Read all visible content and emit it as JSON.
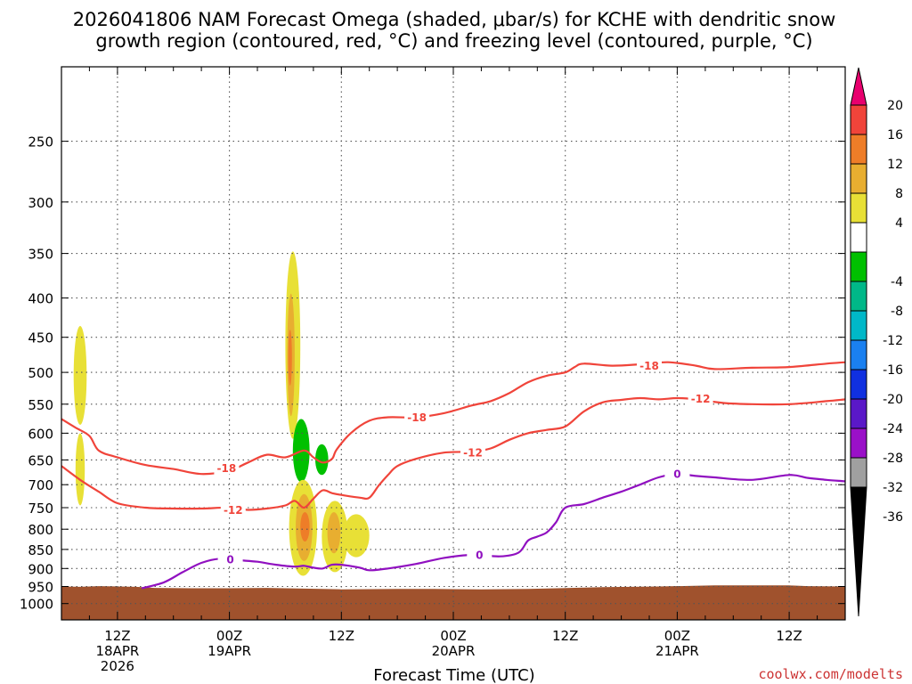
{
  "title_line1": "2026041806 NAM Forecast Omega (shaded, μbar/s) for KCHE with dendritic snow",
  "title_line2": "growth region (contoured, red, °C) and freezing level (contoured, purple, °C)",
  "credit": "coolwx.com/modelts",
  "chart_data": {
    "type": "time-height cross section",
    "xlabel": "Forecast Time (UTC)",
    "x_ticks": [
      {
        "h": 6,
        "l1": "12Z",
        "l2": "18APR",
        "l3": "2026"
      },
      {
        "h": 18,
        "l1": "00Z",
        "l2": "19APR",
        "l3": ""
      },
      {
        "h": 30,
        "l1": "12Z",
        "l2": "",
        "l3": ""
      },
      {
        "h": 42,
        "l1": "00Z",
        "l2": "20APR",
        "l3": ""
      },
      {
        "h": 54,
        "l1": "12Z",
        "l2": "",
        "l3": ""
      },
      {
        "h": 66,
        "l1": "00Z",
        "l2": "21APR",
        "l3": ""
      },
      {
        "h": 78,
        "l1": "12Z",
        "l2": "",
        "l3": ""
      }
    ],
    "xlim": [
      0,
      84
    ],
    "y_scale": "log (pressure, hPa)",
    "ylim": [
      1050,
      200
    ],
    "y_ticks": [
      250,
      300,
      350,
      400,
      450,
      500,
      550,
      600,
      650,
      700,
      750,
      800,
      850,
      900,
      950,
      1000
    ],
    "grid": "dotted",
    "colorbar": {
      "units": "μbar/s",
      "ticks": [
        "20",
        "16",
        "12",
        "8",
        "4",
        "-4",
        "-8",
        "-12",
        "-16",
        "-20",
        "-24",
        "-28",
        "-32",
        "-36"
      ],
      "bins": [
        {
          "lo": 20,
          "hi": null,
          "color": "#e8006e"
        },
        {
          "lo": 16,
          "hi": 20,
          "color": "#f0443a"
        },
        {
          "lo": 12,
          "hi": 16,
          "color": "#ee7d28"
        },
        {
          "lo": 8,
          "hi": 12,
          "color": "#e8ae30"
        },
        {
          "lo": 4,
          "hi": 8,
          "color": "#e8e036"
        },
        {
          "lo": -4,
          "hi": 4,
          "color": "#ffffff"
        },
        {
          "lo": -8,
          "hi": -4,
          "color": "#00c000"
        },
        {
          "lo": -12,
          "hi": -8,
          "color": "#00b888"
        },
        {
          "lo": -16,
          "hi": -12,
          "color": "#00b8c8"
        },
        {
          "lo": -20,
          "hi": -16,
          "color": "#1a80f0"
        },
        {
          "lo": -24,
          "hi": -20,
          "color": "#1030e0"
        },
        {
          "lo": -28,
          "hi": -24,
          "color": "#5a18c8"
        },
        {
          "lo": -32,
          "hi": -28,
          "color": "#9a10c8"
        },
        {
          "lo": -36,
          "hi": -32,
          "color": "#a0a0a0"
        },
        {
          "lo": null,
          "hi": -36,
          "color": "#000000"
        }
      ]
    },
    "contours": [
      {
        "name": "-18",
        "color": "#f0443a",
        "labels": [
          {
            "h": 17.7,
            "p": 666,
            "text": "-18"
          },
          {
            "h": 38.1,
            "p": 572,
            "text": "-18"
          },
          {
            "h": 63.0,
            "p": 490,
            "text": "-18"
          }
        ],
        "points": [
          [
            0,
            575
          ],
          [
            1.5,
            590
          ],
          [
            3,
            605
          ],
          [
            4,
            632
          ],
          [
            6,
            645
          ],
          [
            9,
            660
          ],
          [
            12,
            668
          ],
          [
            15,
            678
          ],
          [
            18,
            671
          ],
          [
            20,
            655
          ],
          [
            22,
            640
          ],
          [
            24,
            645
          ],
          [
            26,
            632
          ],
          [
            27,
            645
          ],
          [
            28,
            655
          ],
          [
            29,
            648
          ],
          [
            29.5,
            630
          ],
          [
            31,
            600
          ],
          [
            33,
            578
          ],
          [
            35,
            572
          ],
          [
            38,
            572
          ],
          [
            41,
            565
          ],
          [
            44,
            552
          ],
          [
            46,
            545
          ],
          [
            48,
            532
          ],
          [
            50,
            515
          ],
          [
            52,
            505
          ],
          [
            54,
            500
          ],
          [
            55,
            492
          ],
          [
            56,
            487
          ],
          [
            59,
            490
          ],
          [
            62,
            488
          ],
          [
            65,
            485
          ],
          [
            68,
            490
          ],
          [
            70,
            495
          ],
          [
            74,
            493
          ],
          [
            78,
            492
          ],
          [
            82,
            487
          ],
          [
            84,
            485
          ]
        ]
      },
      {
        "name": "-12",
        "color": "#f0443a",
        "labels": [
          {
            "h": 18.4,
            "p": 755,
            "text": "-12"
          },
          {
            "h": 44.1,
            "p": 636,
            "text": "-12"
          },
          {
            "h": 68.5,
            "p": 541,
            "text": "-12"
          }
        ],
        "points": [
          [
            0,
            662
          ],
          [
            2,
            690
          ],
          [
            4,
            715
          ],
          [
            6,
            740
          ],
          [
            9,
            750
          ],
          [
            12,
            752
          ],
          [
            15,
            752
          ],
          [
            18,
            750
          ],
          [
            20,
            755
          ],
          [
            22,
            752
          ],
          [
            24,
            745
          ],
          [
            25,
            735
          ],
          [
            26,
            750
          ],
          [
            27,
            730
          ],
          [
            28,
            712
          ],
          [
            29,
            718
          ],
          [
            30,
            722
          ],
          [
            32,
            728
          ],
          [
            33,
            728
          ],
          [
            34,
            702
          ],
          [
            35,
            680
          ],
          [
            36,
            662
          ],
          [
            38,
            648
          ],
          [
            41,
            636
          ],
          [
            44,
            634
          ],
          [
            46,
            628
          ],
          [
            48,
            612
          ],
          [
            50,
            600
          ],
          [
            52,
            594
          ],
          [
            54,
            588
          ],
          [
            56,
            562
          ],
          [
            58,
            547
          ],
          [
            60,
            543
          ],
          [
            62,
            540
          ],
          [
            64,
            542
          ],
          [
            66,
            540
          ],
          [
            68,
            542
          ],
          [
            71,
            548
          ],
          [
            74,
            550
          ],
          [
            78,
            550
          ],
          [
            82,
            545
          ],
          [
            84,
            542
          ]
        ]
      },
      {
        "name": "0",
        "color": "#9010c0",
        "labels": [
          {
            "h": 18.1,
            "p": 876,
            "text": "0"
          },
          {
            "h": 44.8,
            "p": 864,
            "text": "0"
          },
          {
            "h": 66.0,
            "p": 678,
            "text": "0"
          }
        ],
        "points": [
          [
            8.6,
            955
          ],
          [
            11,
            938
          ],
          [
            13,
            910
          ],
          [
            15,
            885
          ],
          [
            17,
            874
          ],
          [
            19,
            878
          ],
          [
            21,
            882
          ],
          [
            23,
            890
          ],
          [
            25,
            895
          ],
          [
            26,
            893
          ],
          [
            27,
            898
          ],
          [
            28,
            900
          ],
          [
            29,
            890
          ],
          [
            30,
            890
          ],
          [
            32,
            898
          ],
          [
            33,
            905
          ],
          [
            35,
            900
          ],
          [
            38,
            888
          ],
          [
            41,
            872
          ],
          [
            44,
            864
          ],
          [
            47,
            868
          ],
          [
            49,
            858
          ],
          [
            50,
            828
          ],
          [
            51,
            818
          ],
          [
            52,
            808
          ],
          [
            53,
            784
          ],
          [
            54,
            750
          ],
          [
            56,
            742
          ],
          [
            58,
            728
          ],
          [
            60,
            715
          ],
          [
            62,
            700
          ],
          [
            64,
            685
          ],
          [
            66,
            678
          ],
          [
            68,
            682
          ],
          [
            70,
            685
          ],
          [
            74,
            690
          ],
          [
            78,
            680
          ],
          [
            80,
            686
          ],
          [
            82,
            690
          ],
          [
            84,
            693
          ]
        ]
      }
    ],
    "omega_regions": [
      {
        "value_range": [
          4,
          8
        ],
        "color": "#e8e036",
        "h_center": 2.0,
        "h_halfwidth": 0.7,
        "p_top": 435,
        "p_bottom": 585
      },
      {
        "value_range": [
          4,
          8
        ],
        "color": "#e8e036",
        "h_center": 2.0,
        "h_halfwidth": 0.5,
        "p_top": 600,
        "p_bottom": 745
      },
      {
        "value_range": [
          4,
          8
        ],
        "color": "#e8e036",
        "h_center": 24.8,
        "h_halfwidth": 0.8,
        "p_top": 348,
        "p_bottom": 610
      },
      {
        "value_range": [
          8,
          12
        ],
        "color": "#e8ae30",
        "h_center": 24.6,
        "h_halfwidth": 0.4,
        "p_top": 395,
        "p_bottom": 570
      },
      {
        "value_range": [
          12,
          16
        ],
        "color": "#ee7d28",
        "h_center": 24.5,
        "h_halfwidth": 0.2,
        "p_top": 440,
        "p_bottom": 520
      },
      {
        "value_range": [
          -8,
          -4
        ],
        "color": "#00c000",
        "h_center": 25.7,
        "h_halfwidth": 0.9,
        "p_top": 575,
        "p_bottom": 695
      },
      {
        "value_range": [
          -8,
          -4
        ],
        "color": "#00c000",
        "h_center": 27.9,
        "h_halfwidth": 0.7,
        "p_top": 620,
        "p_bottom": 680
      },
      {
        "value_range": [
          4,
          8
        ],
        "color": "#e8e036",
        "h_center": 25.9,
        "h_halfwidth": 1.5,
        "p_top": 690,
        "p_bottom": 920
      },
      {
        "value_range": [
          8,
          12
        ],
        "color": "#e8ae30",
        "h_center": 26.0,
        "h_halfwidth": 0.9,
        "p_top": 720,
        "p_bottom": 880
      },
      {
        "value_range": [
          12,
          16
        ],
        "color": "#ee7d28",
        "h_center": 26.1,
        "h_halfwidth": 0.5,
        "p_top": 760,
        "p_bottom": 830
      },
      {
        "value_range": [
          4,
          8
        ],
        "color": "#e8e036",
        "h_center": 29.3,
        "h_halfwidth": 1.4,
        "p_top": 735,
        "p_bottom": 910
      },
      {
        "value_range": [
          8,
          12
        ],
        "color": "#e8ae30",
        "h_center": 29.2,
        "h_halfwidth": 0.7,
        "p_top": 760,
        "p_bottom": 860
      },
      {
        "value_range": [
          4,
          8
        ],
        "color": "#e8e036",
        "h_center": 31.6,
        "h_halfwidth": 1.4,
        "p_top": 765,
        "p_bottom": 870
      }
    ],
    "terrain": {
      "color": "#a0522d",
      "surface_pressure": [
        [
          0,
          950
        ],
        [
          2,
          951
        ],
        [
          4,
          949
        ],
        [
          6,
          950
        ],
        [
          8,
          951
        ],
        [
          10,
          954
        ],
        [
          14,
          955
        ],
        [
          18,
          955
        ],
        [
          22,
          954
        ],
        [
          26,
          956
        ],
        [
          30,
          958
        ],
        [
          36,
          957
        ],
        [
          40,
          957
        ],
        [
          45,
          958
        ],
        [
          50,
          957
        ],
        [
          58,
          952
        ],
        [
          64,
          950
        ],
        [
          70,
          947
        ],
        [
          78,
          947
        ],
        [
          80,
          949
        ],
        [
          84,
          950
        ]
      ]
    }
  }
}
